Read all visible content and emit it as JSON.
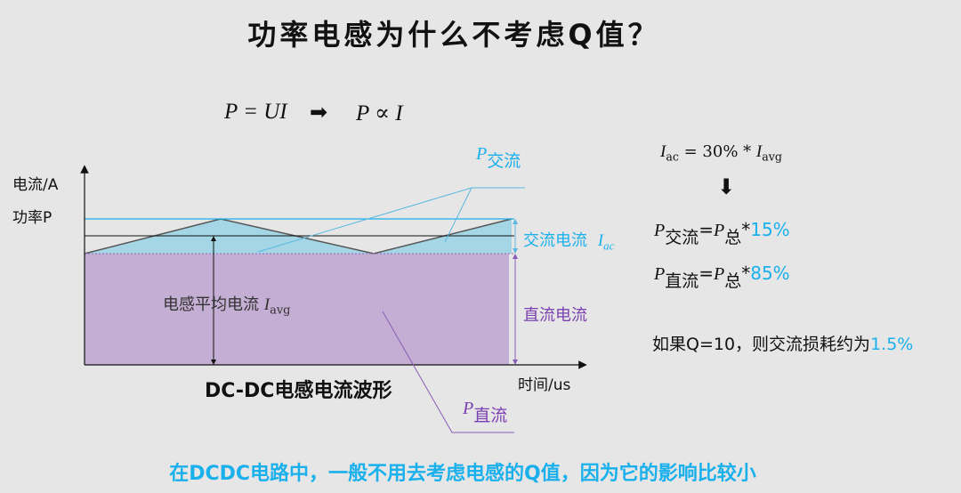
{
  "title": "功率电感为什么不考虑Q值？",
  "formula_top": {
    "left": "P = UI",
    "arrow": "➡",
    "right": "P ∝ I"
  },
  "diagram": {
    "y_axis_label_1": "电流/A",
    "y_axis_label_2": "功率P",
    "x_axis_label": "时间/us",
    "caption": "DC-DC电感电流波形",
    "avg_label": "电感平均电流",
    "avg_symbol": "I",
    "avg_sub": "avg",
    "ac_label": "交流电流",
    "ac_symbol": "I",
    "ac_sub": "ac",
    "dc_label": "直流电流",
    "p_ac_symbol": "P",
    "p_ac_sub": "交流",
    "p_dc_symbol": "P",
    "p_dc_sub": "直流",
    "colors": {
      "ac_fill": "#a4d6e6",
      "dc_fill": "#c4aed3",
      "ac_text": "#1ab0ec",
      "dc_text": "#7a3fb0"
    }
  },
  "right_panel": {
    "eq1": {
      "lhs": "I",
      "lhs_sub": "ac",
      "mid": " = 30% * ",
      "rhs": "I",
      "rhs_sub": "avg"
    },
    "down_arrow": "⬇",
    "eq2": {
      "p": "P",
      "sub": "交流",
      "eq": "=",
      "p2": "P",
      "sub2": "总",
      "star": "*",
      "value": "15%"
    },
    "eq3": {
      "p": "P",
      "sub": "直流",
      "eq": "=",
      "p2": "P",
      "sub2": "总",
      "star": "*",
      "value": "85%"
    },
    "conclusion": "如果Q=10，则交流损耗约为",
    "conclusion_value": "1.5%"
  },
  "footer": "在DCDC电路中，一般不用去考虑电感的Q值，因为它的影响比较小"
}
